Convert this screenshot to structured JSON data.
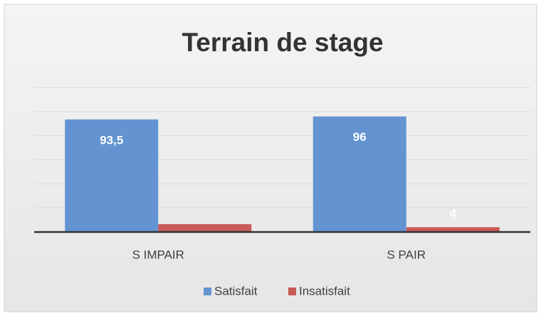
{
  "chart_data": {
    "type": "bar",
    "title": "Terrain de stage",
    "categories": [
      "S IMPAIR",
      "S PAIR"
    ],
    "series": [
      {
        "name": "Satisfait",
        "color": "#6394d1",
        "values": [
          93.5,
          96
        ],
        "value_labels": [
          "93,5",
          "96"
        ]
      },
      {
        "name": "Insatisfait",
        "color": "#c85a58",
        "values": [
          6.5,
          4
        ],
        "value_labels": [
          null,
          "4"
        ]
      }
    ],
    "ylim": [
      0,
      120
    ],
    "yticks": [
      0,
      20,
      40,
      60,
      80,
      100,
      120
    ],
    "grid": true,
    "legend": "bottom"
  }
}
